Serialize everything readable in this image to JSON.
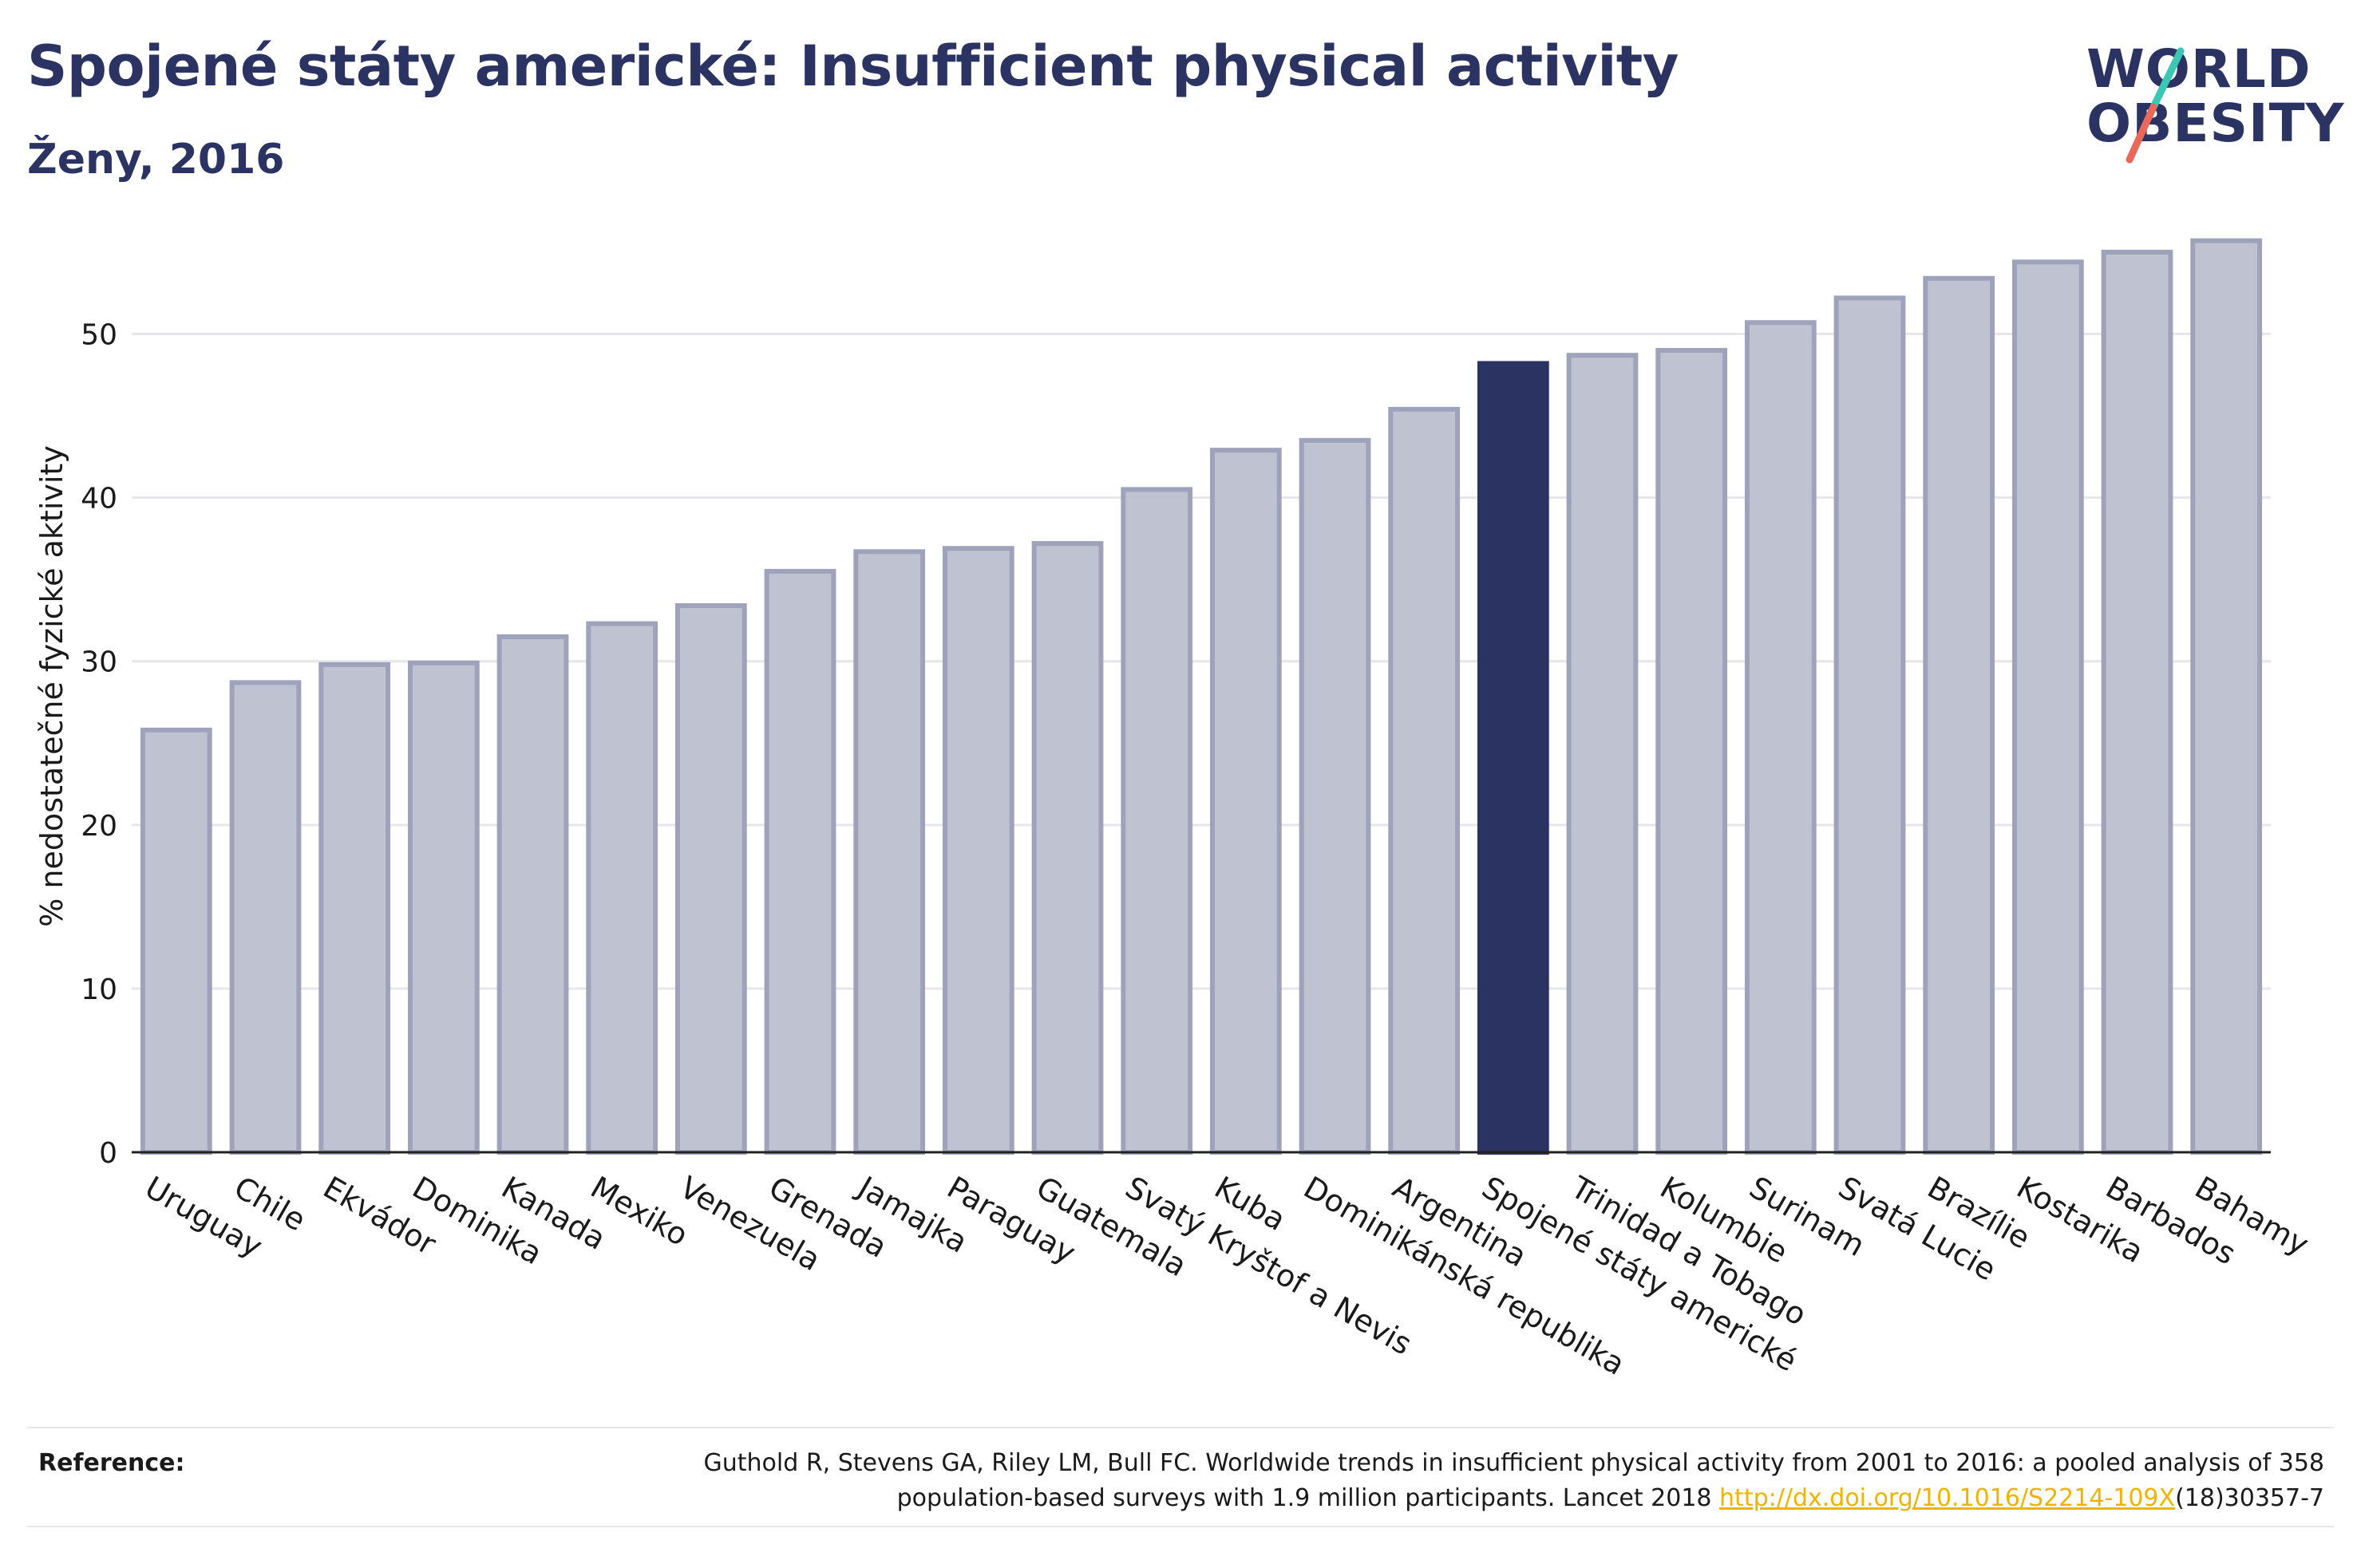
{
  "header": {
    "title": "Spojené státy americké: Insufficient physical activity",
    "subtitle": "Ženy, 2016"
  },
  "logo": {
    "line1": "WORLD",
    "line2": "OBESITY",
    "colors": {
      "text": "#2a3361",
      "slash_top": "#3cc6b4",
      "slash_bottom": "#e8685a"
    }
  },
  "reference": {
    "label": "Reference:",
    "text_line1": "Guthold R, Stevens GA, Riley LM, Bull FC. Worldwide trends in insufficient physical activity from 2001 to 2016: a pooled analysis of 358",
    "text_line2_before": "population-based surveys with 1.9 million participants. Lancet 2018 ",
    "link_text": "http://dx.doi.org/10.1016/S2214-109X",
    "text_line2_after": "(18)30357-7"
  },
  "chart_data": {
    "type": "bar",
    "title": "Spojené státy americké: Insufficient physical activity",
    "subtitle": "Ženy, 2016",
    "xlabel": "",
    "ylabel": "% nedostatečné fyzické aktivity",
    "ylim": [
      0,
      57
    ],
    "yticks": [
      0,
      10,
      20,
      30,
      40,
      50
    ],
    "grid": true,
    "highlight": "Spojené státy americké",
    "colors": {
      "bar": "#bfc2d0",
      "bar_border": "#9ea3bb",
      "highlight": "#2a3361",
      "grid": "#e6e6ec",
      "axis": "#222222"
    },
    "categories": [
      "Uruguay",
      "Chile",
      "Ekvádor",
      "Dominika",
      "Kanada",
      "Mexiko",
      "Venezuela",
      "Grenada",
      "Jamajka",
      "Paraguay",
      "Guatemala",
      "Svatý Kryštof a Nevis",
      "Kuba",
      "Dominikánská republika",
      "Argentina",
      "Spojené státy americké",
      "Trinidad a Tobago",
      "Kolumbie",
      "Surinam",
      "Svatá Lucie",
      "Brazílie",
      "Kostarika",
      "Barbados",
      "Bahamy"
    ],
    "values": [
      25.8,
      28.7,
      29.8,
      29.9,
      31.5,
      32.3,
      33.4,
      35.5,
      36.7,
      36.9,
      37.2,
      40.5,
      42.9,
      43.5,
      45.4,
      48.2,
      48.7,
      49.0,
      50.7,
      52.2,
      53.4,
      54.4,
      55.0,
      55.7
    ]
  }
}
